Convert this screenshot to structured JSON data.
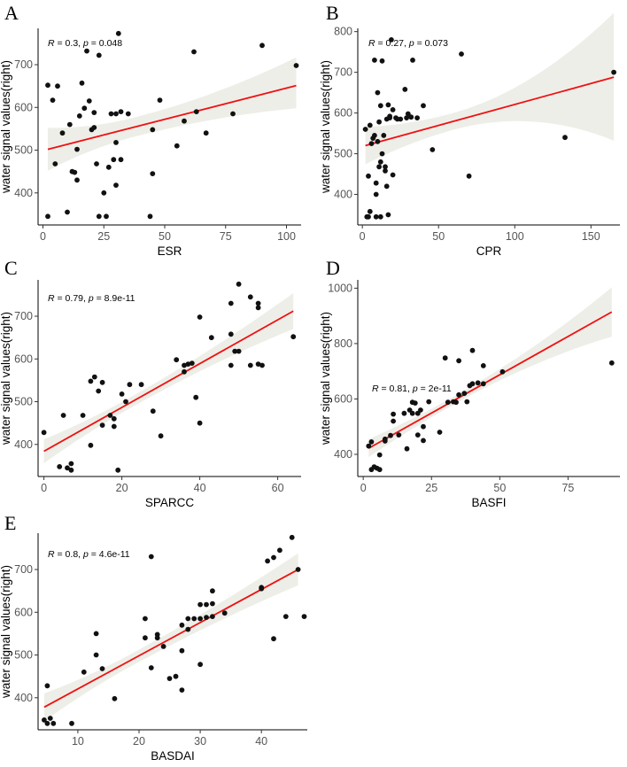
{
  "chart_data": [
    {
      "panel": "A",
      "type": "scatter",
      "xlabel": "ESR",
      "ylabel": "water signal values(right)",
      "xticks": [
        0,
        25,
        50,
        75,
        100
      ],
      "yticks": [
        400,
        500,
        600,
        700
      ],
      "xlim": [
        -2,
        106
      ],
      "ylim": [
        325,
        785
      ],
      "annotation": {
        "r_prefix": "R",
        "r_value": " = 0.3, ",
        "p_prefix": "p",
        "p_value": " = 0.048"
      },
      "fit": {
        "x": [
          2,
          104
        ],
        "y": [
          502,
          651
        ],
        "ci_lower": [
          452,
          598
        ],
        "ci_upper": [
          552,
          717
        ]
      },
      "points": [
        [
          2,
          345
        ],
        [
          2,
          652
        ],
        [
          4,
          617
        ],
        [
          6,
          650
        ],
        [
          5,
          468
        ],
        [
          8,
          540
        ],
        [
          10,
          355
        ],
        [
          11,
          560
        ],
        [
          12,
          450
        ],
        [
          13,
          448
        ],
        [
          14,
          430
        ],
        [
          14,
          502
        ],
        [
          15,
          580
        ],
        [
          16,
          657
        ],
        [
          17,
          598
        ],
        [
          18,
          732
        ],
        [
          19,
          615
        ],
        [
          20,
          548
        ],
        [
          21,
          553
        ],
        [
          21,
          588
        ],
        [
          22,
          468
        ],
        [
          23,
          722
        ],
        [
          23,
          345
        ],
        [
          25,
          400
        ],
        [
          26,
          345
        ],
        [
          27,
          460
        ],
        [
          28,
          585
        ],
        [
          29,
          478
        ],
        [
          30,
          585
        ],
        [
          30,
          418
        ],
        [
          30,
          518
        ],
        [
          31,
          773
        ],
        [
          32,
          590
        ],
        [
          32,
          478
        ],
        [
          35,
          585
        ],
        [
          44,
          345
        ],
        [
          45,
          445
        ],
        [
          45,
          548
        ],
        [
          48,
          617
        ],
        [
          55,
          510
        ],
        [
          58,
          568
        ],
        [
          62,
          730
        ],
        [
          63,
          590
        ],
        [
          67,
          540
        ],
        [
          78,
          585
        ],
        [
          90,
          745
        ],
        [
          104,
          698
        ]
      ]
    },
    {
      "panel": "B",
      "type": "scatter",
      "xlabel": "CPR",
      "ylabel": "water signal values(right)",
      "xticks": [
        0,
        50,
        100,
        150
      ],
      "yticks": [
        400,
        500,
        600,
        700,
        800
      ],
      "xlim": [
        -3,
        169
      ],
      "ylim": [
        325,
        808
      ],
      "annotation": {
        "r_prefix": "R",
        "r_value": " = 0.27, ",
        "p_prefix": "p",
        "p_value": " = 0.073"
      },
      "fit": {
        "x": [
          2,
          165
        ],
        "y": [
          520,
          688
        ],
        "ci_lower": [
          474,
          532
        ],
        "ci_upper": [
          566,
          846
        ]
      },
      "points": [
        [
          2,
          560
        ],
        [
          3,
          345
        ],
        [
          4,
          445
        ],
        [
          4,
          345
        ],
        [
          5,
          358
        ],
        [
          5,
          570
        ],
        [
          6,
          525
        ],
        [
          7,
          538
        ],
        [
          8,
          730
        ],
        [
          8,
          545
        ],
        [
          9,
          345
        ],
        [
          9,
          400
        ],
        [
          9,
          428
        ],
        [
          10,
          650
        ],
        [
          10,
          530
        ],
        [
          11,
          468
        ],
        [
          11,
          578
        ],
        [
          12,
          345
        ],
        [
          12,
          480
        ],
        [
          12,
          618
        ],
        [
          13,
          500
        ],
        [
          13,
          728
        ],
        [
          14,
          545
        ],
        [
          15,
          468
        ],
        [
          15,
          458
        ],
        [
          16,
          420
        ],
        [
          16,
          585
        ],
        [
          17,
          350
        ],
        [
          17,
          620
        ],
        [
          18,
          588
        ],
        [
          18,
          592
        ],
        [
          19,
          780
        ],
        [
          20,
          608
        ],
        [
          20,
          448
        ],
        [
          22,
          588
        ],
        [
          23,
          585
        ],
        [
          25,
          585
        ],
        [
          28,
          658
        ],
        [
          29,
          588
        ],
        [
          30,
          598
        ],
        [
          32,
          590
        ],
        [
          33,
          730
        ],
        [
          36,
          588
        ],
        [
          40,
          618
        ],
        [
          46,
          510
        ],
        [
          65,
          745
        ],
        [
          70,
          445
        ],
        [
          133,
          540
        ],
        [
          165,
          700
        ]
      ]
    },
    {
      "panel": "C",
      "type": "scatter",
      "xlabel": "SPARCC",
      "ylabel": "water signal values(right)",
      "xticks": [
        0,
        20,
        40,
        60
      ],
      "yticks": [
        400,
        500,
        600,
        700
      ],
      "xlim": [
        -1.5,
        66
      ],
      "ylim": [
        325,
        785
      ],
      "annotation": {
        "r_prefix": "R",
        "r_value": " = 0.79, ",
        "p_prefix": "p",
        "p_value": " = 8.9e-11"
      },
      "fit": {
        "x": [
          0,
          64
        ],
        "y": [
          384,
          712
        ],
        "ci_lower": [
          356,
          670
        ],
        "ci_upper": [
          412,
          754
        ]
      },
      "points": [
        [
          0,
          428
        ],
        [
          4,
          348
        ],
        [
          5,
          468
        ],
        [
          6,
          345
        ],
        [
          7,
          340
        ],
        [
          7,
          355
        ],
        [
          10,
          468
        ],
        [
          12,
          398
        ],
        [
          12,
          548
        ],
        [
          13,
          558
        ],
        [
          14,
          525
        ],
        [
          15,
          445
        ],
        [
          15,
          545
        ],
        [
          17,
          468
        ],
        [
          18,
          460
        ],
        [
          18,
          442
        ],
        [
          19,
          340
        ],
        [
          20,
          518
        ],
        [
          21,
          500
        ],
        [
          22,
          540
        ],
        [
          25,
          540
        ],
        [
          28,
          478
        ],
        [
          30,
          420
        ],
        [
          34,
          598
        ],
        [
          36,
          570
        ],
        [
          36,
          585
        ],
        [
          37,
          588
        ],
        [
          38,
          590
        ],
        [
          39,
          510
        ],
        [
          40,
          450
        ],
        [
          40,
          698
        ],
        [
          43,
          650
        ],
        [
          48,
          658
        ],
        [
          48,
          730
        ],
        [
          48,
          585
        ],
        [
          49,
          618
        ],
        [
          50,
          618
        ],
        [
          50,
          775
        ],
        [
          53,
          585
        ],
        [
          53,
          745
        ],
        [
          55,
          720
        ],
        [
          55,
          730
        ],
        [
          55,
          588
        ],
        [
          56,
          585
        ],
        [
          64,
          652
        ]
      ]
    },
    {
      "panel": "D",
      "type": "scatter",
      "xlabel": "BASFI",
      "ylabel": "water signal values(right)",
      "xticks": [
        0,
        25,
        50,
        75
      ],
      "yticks": [
        400,
        600,
        800,
        1000
      ],
      "xlim": [
        -2,
        94
      ],
      "ylim": [
        320,
        1030
      ],
      "annotation": {
        "r_prefix": "R",
        "r_value": " = 0.81, ",
        "p_prefix": "p",
        "p_value": " = 2e-11"
      },
      "fit": {
        "x": [
          2,
          91
        ],
        "y": [
          422,
          914
        ],
        "ci_lower": [
          390,
          825
        ],
        "ci_upper": [
          455,
          1003
        ]
      },
      "points": [
        [
          2,
          430
        ],
        [
          3,
          445
        ],
        [
          3,
          345
        ],
        [
          4,
          355
        ],
        [
          5,
          350
        ],
        [
          6,
          398
        ],
        [
          6,
          345
        ],
        [
          8,
          455
        ],
        [
          8,
          448
        ],
        [
          10,
          468
        ],
        [
          11,
          520
        ],
        [
          11,
          545
        ],
        [
          13,
          470
        ],
        [
          15,
          548
        ],
        [
          16,
          420
        ],
        [
          17,
          560
        ],
        [
          18,
          548
        ],
        [
          18,
          588
        ],
        [
          19,
          585
        ],
        [
          20,
          470
        ],
        [
          20,
          548
        ],
        [
          21,
          560
        ],
        [
          22,
          500
        ],
        [
          22,
          450
        ],
        [
          24,
          590
        ],
        [
          28,
          480
        ],
        [
          30,
          748
        ],
        [
          31,
          588
        ],
        [
          33,
          590
        ],
        [
          34,
          588
        ],
        [
          35,
          615
        ],
        [
          35,
          738
        ],
        [
          37,
          620
        ],
        [
          38,
          590
        ],
        [
          39,
          648
        ],
        [
          40,
          655
        ],
        [
          40,
          775
        ],
        [
          42,
          658
        ],
        [
          44,
          720
        ],
        [
          44,
          655
        ],
        [
          51,
          698
        ],
        [
          91,
          730
        ]
      ]
    },
    {
      "panel": "E",
      "type": "scatter",
      "xlabel": "BASDAI",
      "ylabel": "water signal values(right)",
      "xticks": [
        10,
        20,
        30,
        40
      ],
      "yticks": [
        400,
        500,
        600,
        700
      ],
      "xlim": [
        3.5,
        47.5
      ],
      "ylim": [
        325,
        785
      ],
      "annotation": {
        "r_prefix": "R",
        "r_value": " = 0.8, ",
        "p_prefix": "p",
        "p_value": " = 4.6e-11"
      },
      "fit": {
        "x": [
          4.5,
          46
        ],
        "y": [
          378,
          700
        ],
        "ci_lower": [
          345,
          663
        ],
        "ci_upper": [
          410,
          738
        ]
      },
      "points": [
        [
          4.5,
          348
        ],
        [
          5,
          340
        ],
        [
          5,
          428
        ],
        [
          5.5,
          352
        ],
        [
          6,
          340
        ],
        [
          9,
          340
        ],
        [
          11,
          460
        ],
        [
          13,
          500
        ],
        [
          13,
          550
        ],
        [
          14,
          468
        ],
        [
          16,
          398
        ],
        [
          21,
          585
        ],
        [
          21,
          540
        ],
        [
          22,
          730
        ],
        [
          22,
          470
        ],
        [
          23,
          548
        ],
        [
          23,
          540
        ],
        [
          24,
          520
        ],
        [
          25,
          445
        ],
        [
          26,
          450
        ],
        [
          27,
          418
        ],
        [
          27,
          510
        ],
        [
          27,
          570
        ],
        [
          28,
          585
        ],
        [
          28,
          560
        ],
        [
          29,
          585
        ],
        [
          30,
          478
        ],
        [
          30,
          585
        ],
        [
          30,
          618
        ],
        [
          31,
          618
        ],
        [
          31,
          588
        ],
        [
          32,
          620
        ],
        [
          32,
          650
        ],
        [
          32,
          590
        ],
        [
          34,
          598
        ],
        [
          40,
          658
        ],
        [
          40,
          655
        ],
        [
          41,
          720
        ],
        [
          42,
          728
        ],
        [
          42,
          538
        ],
        [
          43,
          745
        ],
        [
          44,
          590
        ],
        [
          45,
          775
        ],
        [
          46,
          700
        ],
        [
          47,
          590
        ]
      ]
    }
  ]
}
